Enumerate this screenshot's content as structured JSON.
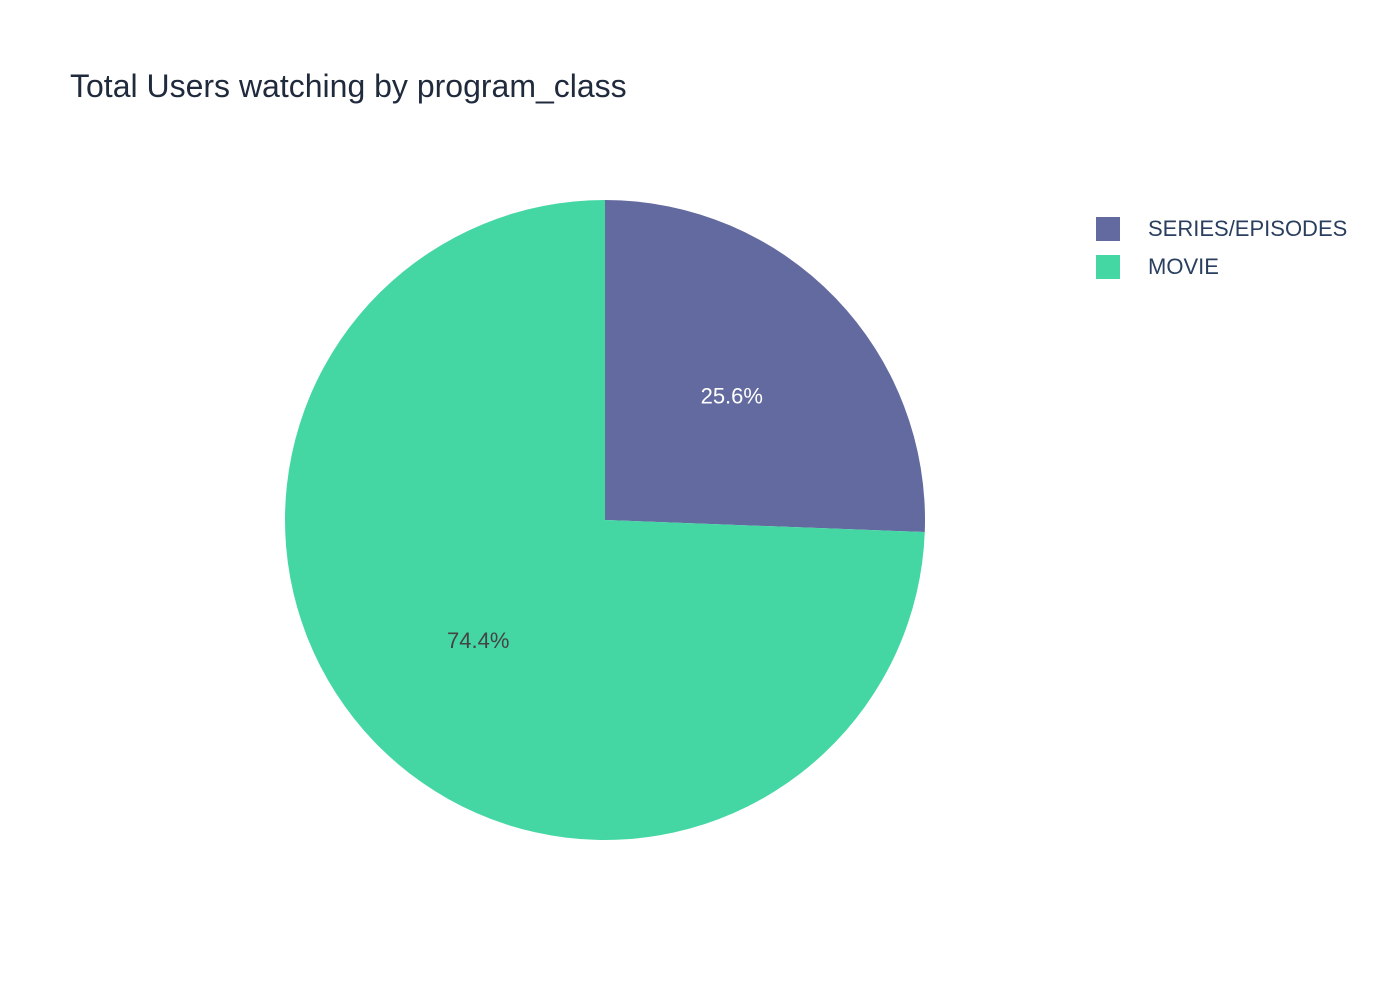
{
  "chart_data": {
    "type": "pie",
    "title": "Total Users watching by program_class",
    "slices": [
      {
        "label": "SERIES/EPISODES",
        "value": 25.6,
        "text": "25.6%",
        "color": "#636a9f",
        "text_color": "#ffffff"
      },
      {
        "label": "MOVIE",
        "value": 74.4,
        "text": "74.4%",
        "color": "#44d7a4",
        "text_color": "#444444"
      }
    ],
    "legend_placement": "top-right",
    "direction": "clockwise",
    "start": "top"
  }
}
